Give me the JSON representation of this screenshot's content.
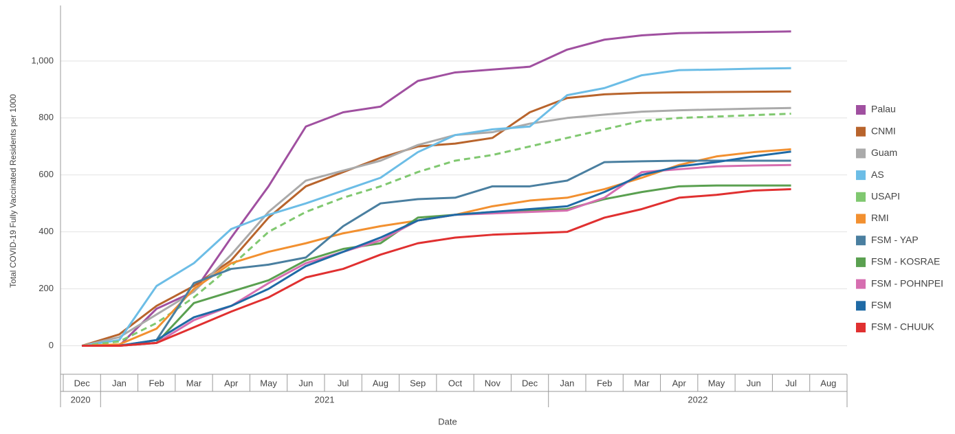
{
  "chart_data": {
    "type": "line",
    "x_label": "Date",
    "y_label": "Total COVID-19 Fully Vaccinated Residents per 1000",
    "x": [
      "2020-12",
      "2021-01",
      "2021-02",
      "2021-03",
      "2021-04",
      "2021-05",
      "2021-06",
      "2021-07",
      "2021-08",
      "2021-09",
      "2021-10",
      "2021-11",
      "2021-12",
      "2022-01",
      "2022-02",
      "2022-03",
      "2022-04",
      "2022-05",
      "2022-06",
      "2022-07"
    ],
    "xticks": [
      {
        "value": "2020-12",
        "label": "Dec"
      },
      {
        "value": "2021-01",
        "label": "Jan"
      },
      {
        "value": "2021-02",
        "label": "Feb"
      },
      {
        "value": "2021-03",
        "label": "Mar"
      },
      {
        "value": "2021-04",
        "label": "Apr"
      },
      {
        "value": "2021-05",
        "label": "May"
      },
      {
        "value": "2021-06",
        "label": "Jun"
      },
      {
        "value": "2021-07",
        "label": "Jul"
      },
      {
        "value": "2021-08",
        "label": "Aug"
      },
      {
        "value": "2021-09",
        "label": "Sep"
      },
      {
        "value": "2021-10",
        "label": "Oct"
      },
      {
        "value": "2021-11",
        "label": "Nov"
      },
      {
        "value": "2021-12",
        "label": "Dec"
      },
      {
        "value": "2022-01",
        "label": "Jan"
      },
      {
        "value": "2022-02",
        "label": "Feb"
      },
      {
        "value": "2022-03",
        "label": "Mar"
      },
      {
        "value": "2022-04",
        "label": "Apr"
      },
      {
        "value": "2022-05",
        "label": "May"
      },
      {
        "value": "2022-06",
        "label": "Jun"
      },
      {
        "value": "2022-07",
        "label": "Jul"
      },
      {
        "value": "2022-08",
        "label": "Aug"
      }
    ],
    "year_labels": [
      "2020",
      "2021",
      "2022"
    ],
    "ylim": [
      -100,
      1195
    ],
    "yticks": [
      0,
      200,
      400,
      600,
      800,
      {
        "value": 1000,
        "label": "1,000"
      }
    ],
    "grid": true,
    "legend": "right",
    "series": [
      {
        "name": "Palau",
        "color": "#a050a0",
        "values": [
          0,
          0,
          130,
          190,
          380,
          560,
          770,
          820,
          840,
          930,
          960,
          970,
          980,
          1040,
          1075,
          1090,
          1098,
          1100,
          1102,
          1104
        ]
      },
      {
        "name": "CNMI",
        "color": "#b8642c",
        "values": [
          0,
          40,
          140,
          210,
          300,
          450,
          560,
          610,
          660,
          700,
          710,
          730,
          820,
          870,
          883,
          888,
          890,
          891,
          892,
          893
        ]
      },
      {
        "name": "Guam",
        "color": "#aaaaaa",
        "values": [
          0,
          30,
          110,
          190,
          320,
          470,
          580,
          615,
          650,
          705,
          740,
          750,
          780,
          800,
          812,
          822,
          827,
          830,
          833,
          835
        ]
      },
      {
        "name": "AS",
        "color": "#6cbde6",
        "values": [
          0,
          20,
          210,
          290,
          410,
          460,
          500,
          545,
          590,
          680,
          740,
          760,
          770,
          880,
          905,
          950,
          968,
          970,
          973,
          975
        ]
      },
      {
        "name": "USAPI",
        "color": "#80c870",
        "dashed": true,
        "values": [
          0,
          15,
          80,
          170,
          280,
          400,
          470,
          520,
          560,
          610,
          650,
          670,
          700,
          730,
          760,
          790,
          800,
          805,
          810,
          815
        ]
      },
      {
        "name": "RMI",
        "color": "#f29030",
        "values": [
          0,
          5,
          60,
          200,
          290,
          330,
          360,
          395,
          420,
          440,
          460,
          490,
          510,
          520,
          550,
          590,
          635,
          665,
          680,
          690
        ]
      },
      {
        "name": "FSM - YAP",
        "color": "#4a7fa0",
        "values": [
          0,
          0,
          20,
          220,
          270,
          285,
          310,
          420,
          500,
          515,
          520,
          560,
          560,
          580,
          645,
          648,
          650,
          650,
          650,
          650
        ]
      },
      {
        "name": "FSM - KOSRAE",
        "color": "#5aa050",
        "values": [
          0,
          0,
          10,
          150,
          190,
          230,
          300,
          340,
          360,
          450,
          460,
          470,
          475,
          480,
          515,
          540,
          560,
          563,
          563,
          563
        ]
      },
      {
        "name": "FSM - POHNPEI",
        "color": "#d66eb0",
        "values": [
          0,
          0,
          10,
          90,
          140,
          220,
          290,
          330,
          370,
          440,
          460,
          465,
          470,
          475,
          520,
          610,
          620,
          630,
          633,
          635
        ]
      },
      {
        "name": "FSM",
        "color": "#1f6aa5",
        "values": [
          0,
          0,
          20,
          100,
          140,
          200,
          280,
          330,
          380,
          440,
          460,
          470,
          480,
          490,
          540,
          600,
          630,
          645,
          665,
          682
        ]
      },
      {
        "name": "FSM - CHUUK",
        "color": "#e03030",
        "values": [
          0,
          0,
          10,
          65,
          120,
          170,
          240,
          270,
          320,
          360,
          380,
          390,
          395,
          400,
          450,
          480,
          520,
          530,
          545,
          550
        ]
      }
    ]
  }
}
